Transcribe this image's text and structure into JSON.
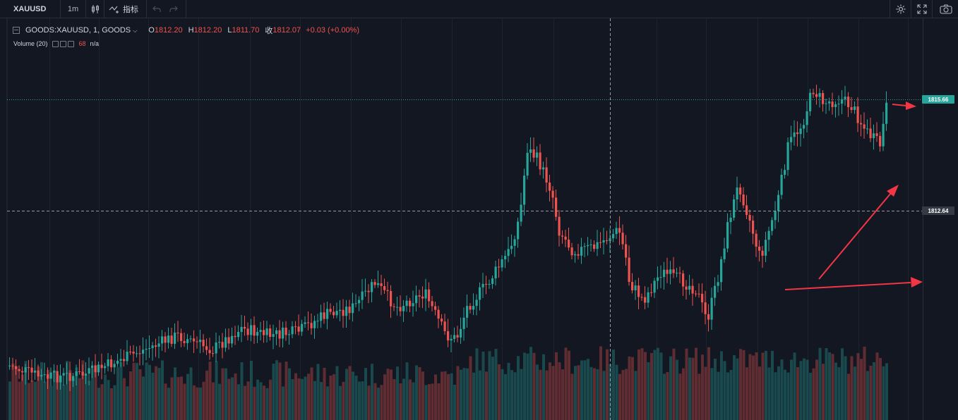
{
  "toolbar": {
    "symbol": "XAUUSD",
    "interval": "1m",
    "indicators_label": "指标"
  },
  "legend": {
    "symbol_full": "GOODS:XAUUSD, 1, GOODS",
    "open_label": "O",
    "open": "1812.20",
    "high_label": "H",
    "high": "1812.20",
    "low_label": "L",
    "low": "1811.70",
    "close_label": "收",
    "close": "1812.07",
    "change": "+0.03 (+0.00%)"
  },
  "volume_legend": {
    "title": "Volume (20)",
    "value": "68",
    "na": "n/a"
  },
  "price_axis": {
    "last_price": "1815.66",
    "crosshair_price": "1812.64"
  },
  "colors": {
    "background": "#131722",
    "up": "#26a69a",
    "down": "#ef5350",
    "annotation_arrow": "#f23645"
  },
  "icons": [
    "candles-icon",
    "indicators-icon",
    "undo-icon",
    "redo-icon",
    "settings-icon",
    "fullscreen-icon",
    "camera-icon"
  ],
  "annotations": [
    "arrow-up-right",
    "arrow-right-upper",
    "arrow-right-lower"
  ]
}
